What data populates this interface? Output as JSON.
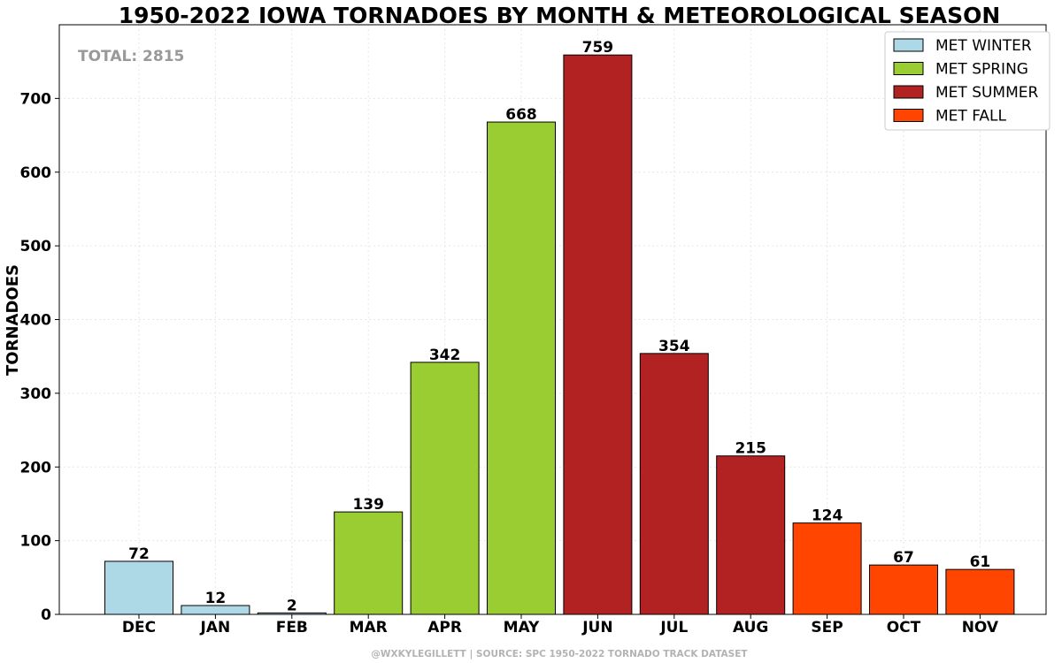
{
  "chart_data": {
    "type": "bar",
    "title": "1950-2022 IOWA TORNADOES BY MONTH & METEOROLOGICAL SEASON",
    "ylabel": "TORNADOES",
    "ylim": [
      0,
      800
    ],
    "yticks": [
      0,
      100,
      200,
      300,
      400,
      500,
      600,
      700
    ],
    "grid": true,
    "legend_position": "top-right",
    "total_label": "TOTAL: 2815",
    "credit": "@WXKYLEGILLETT | SOURCE: SPC 1950-2022 TORNADO TRACK DATASET",
    "categories": [
      "DEC",
      "JAN",
      "FEB",
      "MAR",
      "APR",
      "MAY",
      "JUN",
      "JUL",
      "AUG",
      "SEP",
      "OCT",
      "NOV"
    ],
    "values": [
      72,
      12,
      2,
      139,
      342,
      668,
      759,
      354,
      215,
      124,
      67,
      61
    ],
    "seasons": [
      0,
      0,
      0,
      1,
      1,
      1,
      2,
      2,
      2,
      3,
      3,
      3
    ],
    "series": [
      {
        "name": "MET WINTER",
        "color": "#add8e6"
      },
      {
        "name": "MET SPRING",
        "color": "#9acd32"
      },
      {
        "name": "MET SUMMER",
        "color": "#b22222"
      },
      {
        "name": "MET FALL",
        "color": "#ff4500"
      }
    ]
  }
}
